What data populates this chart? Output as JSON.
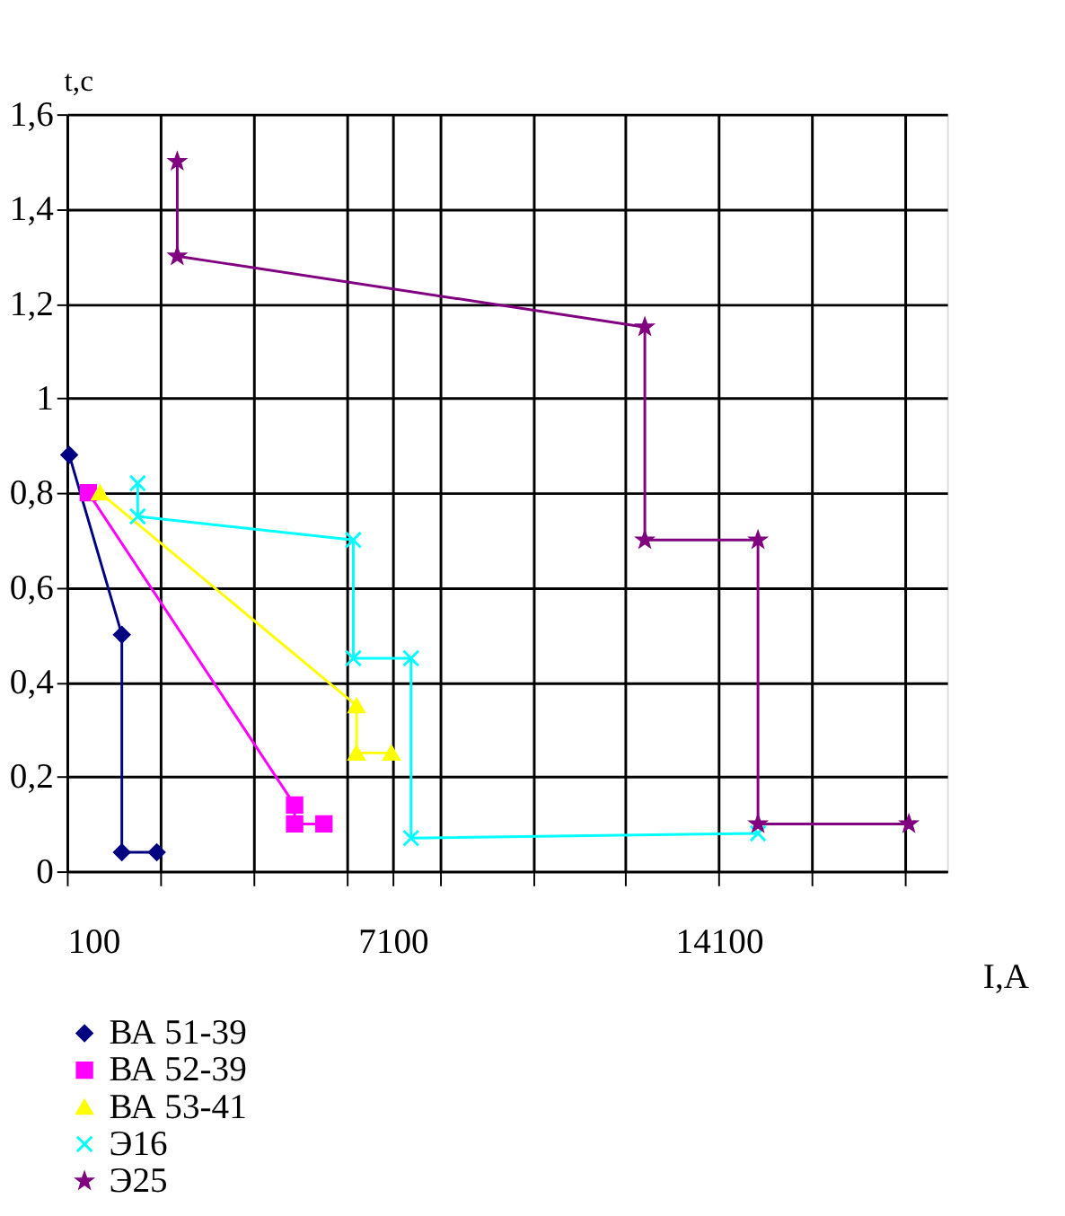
{
  "chart_data": {
    "type": "line",
    "xlabel": "I,A",
    "ylabel": "t,c",
    "xlim": [
      100,
      19000
    ],
    "ylim": [
      0,
      1.6
    ],
    "xticks": [
      100,
      {
        "value": 2100,
        "label": null
      },
      {
        "value": 4100,
        "label": null
      },
      {
        "value": 6100,
        "label": null
      },
      7100,
      {
        "value": 8100,
        "label": null
      },
      {
        "value": 10100,
        "label": null
      },
      {
        "value": 12100,
        "label": null
      },
      14100,
      {
        "value": 16100,
        "label": null
      },
      {
        "value": 18100,
        "label": null
      }
    ],
    "yticks": [
      0,
      {
        "value": 0.2,
        "label": "0,2"
      },
      {
        "value": 0.4,
        "label": "0,4"
      },
      {
        "value": 0.6,
        "label": "0,6"
      },
      {
        "value": 0.8,
        "label": "0,8"
      },
      1,
      {
        "value": 1.2,
        "label": "1,2"
      },
      {
        "value": 1.4,
        "label": "1,4"
      },
      {
        "value": 1.6,
        "label": "1,6"
      }
    ],
    "grid": true,
    "legend": "bottom",
    "line_style": "solid",
    "series": [
      {
        "name": "ВА 51-39",
        "color": "#000080",
        "marker": "diamond",
        "x": [
          150,
          1280,
          1280,
          2030
        ],
        "values": [
          0.88,
          0.5,
          0.04,
          0.04
        ]
      },
      {
        "name": "ВА 52-39",
        "color": "#ff00ff",
        "marker": "square",
        "x": [
          560,
          4990,
          4990,
          5620
        ],
        "values": [
          0.8,
          0.14,
          0.1,
          0.1
        ]
      },
      {
        "name": "ВА 53-41",
        "color": "#ffff00",
        "marker": "triangle",
        "x": [
          810,
          6320,
          6320,
          7070
        ],
        "values": [
          0.8,
          0.35,
          0.25,
          0.25
        ]
      },
      {
        "name": "Э16",
        "color": "#00ffff",
        "marker": "cross",
        "x": [
          1620,
          1620,
          6250,
          6250,
          7490,
          7490,
          14940
        ],
        "values": [
          0.82,
          0.75,
          0.7,
          0.45,
          0.45,
          0.07,
          0.08
        ]
      },
      {
        "name": "Э25",
        "color": "#800080",
        "marker": "star",
        "x": [
          2470,
          2470,
          12510,
          12510,
          14940,
          14940,
          18180
        ],
        "values": [
          1.5,
          1.3,
          1.15,
          0.7,
          0.7,
          0.1,
          0.1
        ]
      }
    ]
  }
}
